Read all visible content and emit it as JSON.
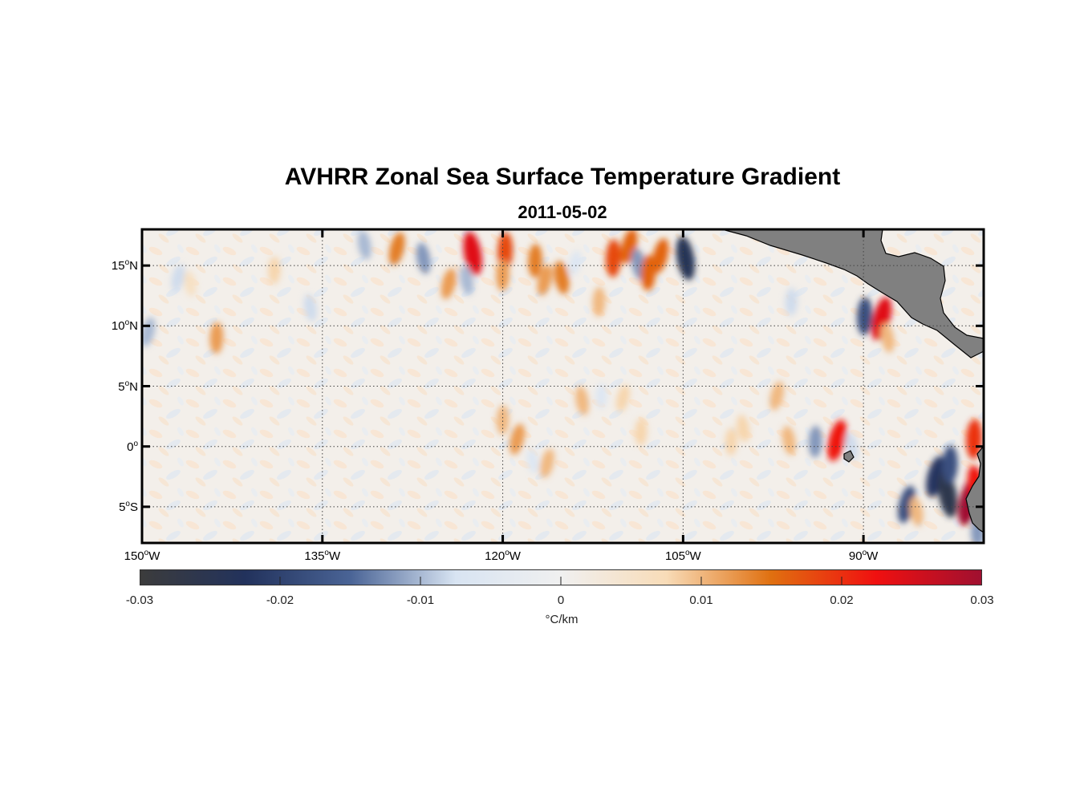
{
  "title": "AVHRR Zonal Sea Surface Temperature Gradient",
  "subtitle": "2011-05-02",
  "chart_data": {
    "type": "heatmap",
    "title": "AVHRR Zonal Sea Surface Temperature Gradient",
    "subtitle": "2011-05-02",
    "lon_range": [
      -150,
      -80
    ],
    "lat_range": [
      -8,
      18
    ],
    "y_ticks": [
      {
        "value": 15,
        "deg": "15",
        "hemi": "N"
      },
      {
        "value": 10,
        "deg": "10",
        "hemi": "N"
      },
      {
        "value": 5,
        "deg": "5",
        "hemi": "N"
      },
      {
        "value": 0,
        "deg": "0",
        "hemi": ""
      },
      {
        "value": -5,
        "deg": "5",
        "hemi": "S"
      }
    ],
    "x_ticks": [
      {
        "value": -150,
        "deg": "150",
        "hemi": "W"
      },
      {
        "value": -135,
        "deg": "135",
        "hemi": "W"
      },
      {
        "value": -120,
        "deg": "120",
        "hemi": "W"
      },
      {
        "value": -105,
        "deg": "105",
        "hemi": "W"
      },
      {
        "value": -90,
        "deg": "90",
        "hemi": "W"
      }
    ],
    "colorbar": {
      "range": [
        -0.03,
        0.03
      ],
      "ticks": [
        "-0.03",
        "-0.02",
        "-0.01",
        "0",
        "0.01",
        "0.02",
        "0.03"
      ],
      "unit": "°C/km",
      "colors": [
        "#3c3c3c",
        "#22325c",
        "#4a6496",
        "#d8e4f2",
        "#f0f0f0",
        "#f8dcb8",
        "#e07010",
        "#f01010",
        "#a01030"
      ]
    },
    "grid": true,
    "land_color": "#808080",
    "features": [
      {
        "lon": -122.5,
        "lat": 16.0,
        "value": 0.024
      },
      {
        "lon": -119.8,
        "lat": 16.2,
        "value": 0.018
      },
      {
        "lon": -128.8,
        "lat": 16.4,
        "value": 0.014
      },
      {
        "lon": -126.6,
        "lat": 15.6,
        "value": -0.012
      },
      {
        "lon": -120.0,
        "lat": 14.2,
        "value": 0.012
      },
      {
        "lon": -124.5,
        "lat": 13.5,
        "value": 0.012
      },
      {
        "lon": -123.0,
        "lat": 13.8,
        "value": -0.01
      },
      {
        "lon": -117.3,
        "lat": 15.4,
        "value": 0.014
      },
      {
        "lon": -116.5,
        "lat": 13.8,
        "value": 0.012
      },
      {
        "lon": -115.1,
        "lat": 14.0,
        "value": 0.014
      },
      {
        "lon": -110.8,
        "lat": 15.6,
        "value": 0.018
      },
      {
        "lon": -109.5,
        "lat": 16.6,
        "value": 0.016
      },
      {
        "lon": -108.7,
        "lat": 15.1,
        "value": -0.012
      },
      {
        "lon": -107.9,
        "lat": 14.4,
        "value": 0.016
      },
      {
        "lon": -106.9,
        "lat": 15.8,
        "value": 0.016
      },
      {
        "lon": -104.8,
        "lat": 15.6,
        "value": -0.024
      },
      {
        "lon": -112.0,
        "lat": 12.0,
        "value": 0.01
      },
      {
        "lon": -114.0,
        "lat": 15.2,
        "value": -0.006
      },
      {
        "lon": -131.5,
        "lat": 16.7,
        "value": -0.01
      },
      {
        "lon": -139.0,
        "lat": 14.6,
        "value": 0.008
      },
      {
        "lon": -147.0,
        "lat": 14.0,
        "value": -0.008
      },
      {
        "lon": -146.0,
        "lat": 13.5,
        "value": 0.006
      },
      {
        "lon": -143.8,
        "lat": 9.0,
        "value": 0.012
      },
      {
        "lon": -149.5,
        "lat": 9.5,
        "value": -0.01
      },
      {
        "lon": -136.0,
        "lat": 11.5,
        "value": -0.008
      },
      {
        "lon": -120.0,
        "lat": 2.2,
        "value": 0.01
      },
      {
        "lon": -118.8,
        "lat": 0.6,
        "value": 0.012
      },
      {
        "lon": -113.4,
        "lat": 3.8,
        "value": 0.01
      },
      {
        "lon": -111.8,
        "lat": 4.2,
        "value": -0.006
      },
      {
        "lon": -116.3,
        "lat": -1.4,
        "value": 0.01
      },
      {
        "lon": -117.5,
        "lat": -1.2,
        "value": -0.006
      },
      {
        "lon": -108.5,
        "lat": 1.2,
        "value": 0.008
      },
      {
        "lon": -110.0,
        "lat": 4.0,
        "value": 0.008
      },
      {
        "lon": -96.2,
        "lat": 0.5,
        "value": 0.01
      },
      {
        "lon": -94.0,
        "lat": 0.4,
        "value": -0.012
      },
      {
        "lon": -92.2,
        "lat": 0.5,
        "value": 0.022
      },
      {
        "lon": -91.0,
        "lat": 0.0,
        "value": -0.008
      },
      {
        "lon": -89.9,
        "lat": 10.8,
        "value": -0.018
      },
      {
        "lon": -88.5,
        "lat": 10.6,
        "value": 0.024
      },
      {
        "lon": -88.0,
        "lat": 9.0,
        "value": 0.01
      },
      {
        "lon": -96.0,
        "lat": 12.0,
        "value": -0.008
      },
      {
        "lon": -84.0,
        "lat": -2.5,
        "value": -0.022
      },
      {
        "lon": -83.0,
        "lat": -4.0,
        "value": -0.026
      },
      {
        "lon": -82.8,
        "lat": -1.5,
        "value": -0.018
      },
      {
        "lon": -81.2,
        "lat": -4.5,
        "value": 0.03
      },
      {
        "lon": -80.6,
        "lat": -3.3,
        "value": 0.022
      },
      {
        "lon": -80.8,
        "lat": 0.6,
        "value": 0.02
      },
      {
        "lon": -86.4,
        "lat": -4.8,
        "value": -0.018
      },
      {
        "lon": -85.6,
        "lat": -5.4,
        "value": 0.01
      },
      {
        "lon": -80.5,
        "lat": -7.0,
        "value": -0.012
      },
      {
        "lon": -97.2,
        "lat": 4.2,
        "value": 0.01
      },
      {
        "lon": -100.0,
        "lat": 1.5,
        "value": 0.008
      },
      {
        "lon": -101.0,
        "lat": 0.4,
        "value": 0.008
      }
    ]
  }
}
